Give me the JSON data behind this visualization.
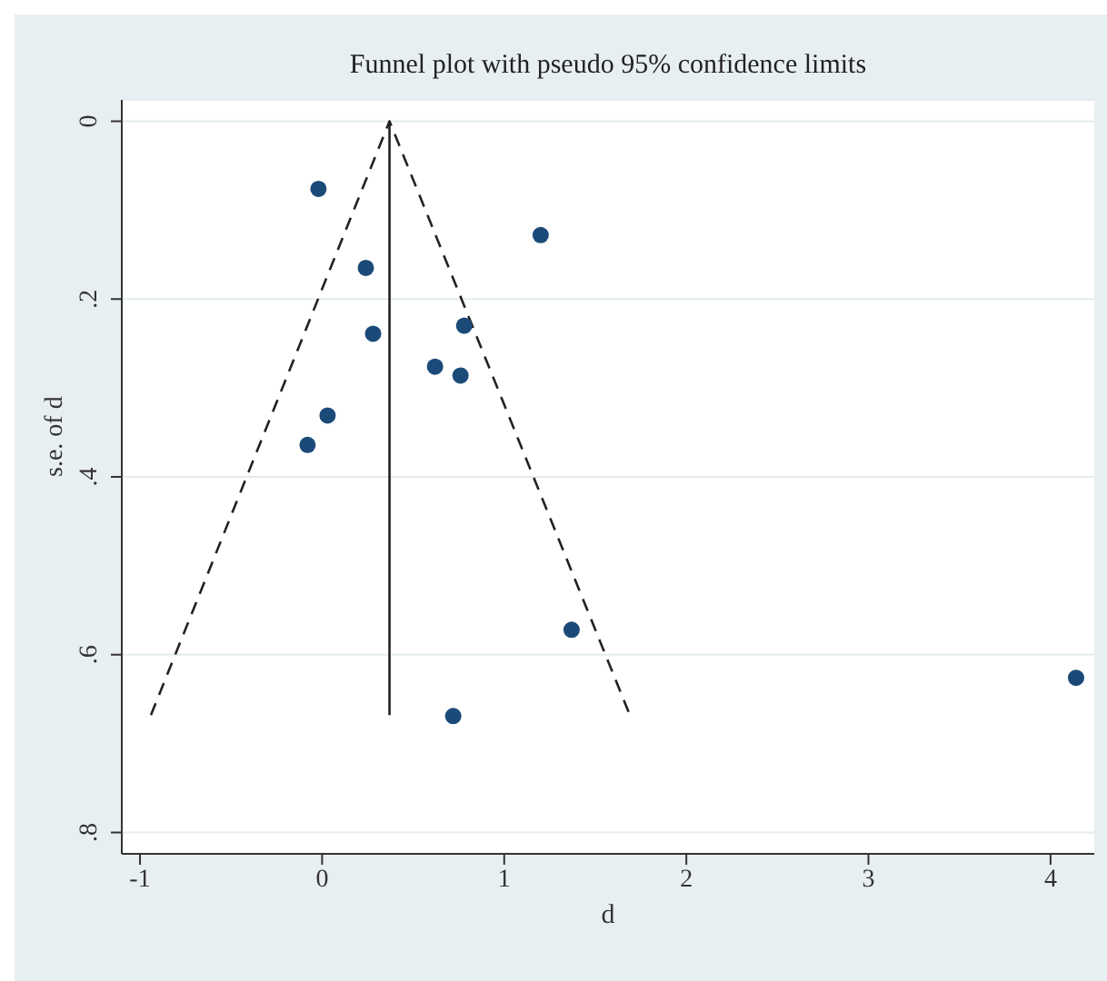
{
  "chart_data": {
    "type": "scatter",
    "title": "Funnel plot with pseudo 95% confidence limits",
    "xlabel": "d",
    "ylabel": "s.e. of d",
    "x": [
      -0.02,
      1.2,
      0.24,
      0.28,
      0.78,
      0.62,
      0.76,
      0.03,
      -0.08,
      1.37,
      0.72,
      4.14
    ],
    "series": [
      {
        "color": "#1b4a78",
        "marker": "circle",
        "values": [
          0.076,
          0.128,
          0.165,
          0.239,
          0.23,
          0.276,
          0.286,
          0.331,
          0.364,
          0.572,
          0.669,
          0.626
        ]
      },
      {
        "type": "line",
        "color": "#222222",
        "line_style": "dashed",
        "marker": "none",
        "x": [
          -0.94,
          0.37,
          1.69
        ],
        "values": [
          0.668,
          0,
          0.668
        ]
      },
      {
        "type": "line",
        "color": "#222222",
        "line_style": "solid",
        "marker": "none",
        "x": [
          0.37,
          0.37
        ],
        "values": [
          0,
          0.668
        ]
      }
    ],
    "xlim": [
      -1.1,
      4.24
    ],
    "xticks": [
      -1,
      0,
      1,
      2,
      3,
      4
    ],
    "ylim": [
      0.824,
      -0.024
    ],
    "yticks": [
      {
        "value": 0,
        "label": "0"
      },
      {
        "value": 0.2,
        "label": ".2"
      },
      {
        "value": 0.4,
        "label": ".4"
      },
      {
        "value": 0.6,
        "label": ".6"
      },
      {
        "value": 0.8,
        "label": ".8"
      }
    ],
    "grid": "y",
    "legend": false
  }
}
